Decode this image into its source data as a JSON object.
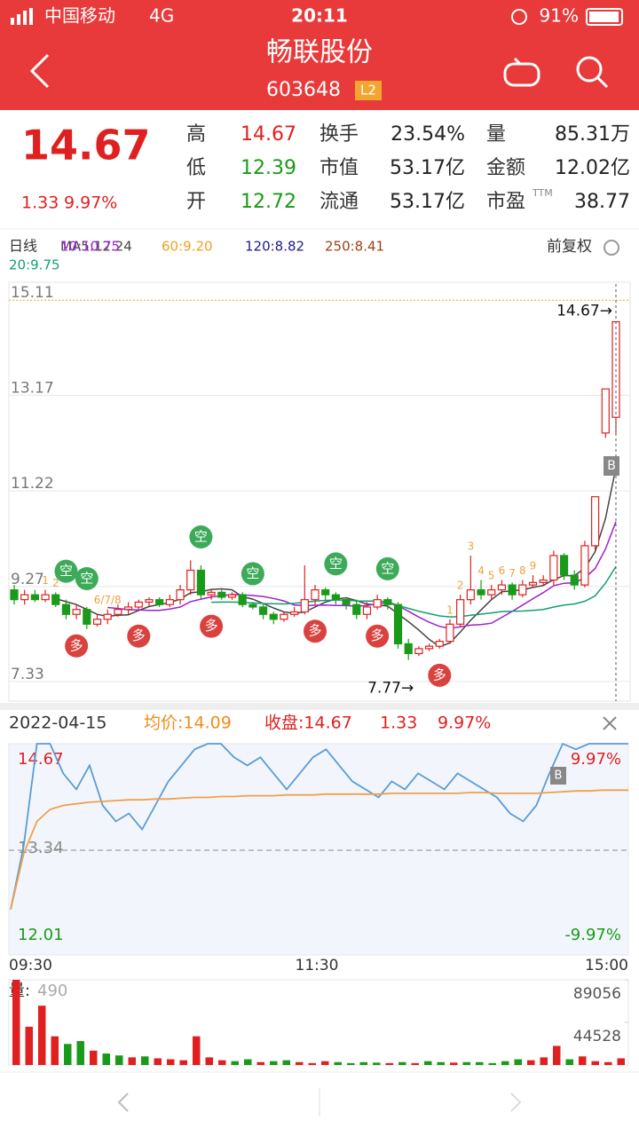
{
  "status": {
    "carrier": "中国移动",
    "network": "4G",
    "time": "20:11",
    "battery": "91%"
  },
  "header": {
    "title": "畅联股份",
    "code": "603648",
    "badge": "L2"
  },
  "quote": {
    "price": "14.67",
    "change": "1.33",
    "pct": "9.97%",
    "ttm": "TTM",
    "stats": [
      {
        "label": "高",
        "value": "14.67"
      },
      {
        "label": "低",
        "value": "12.39"
      },
      {
        "label": "开",
        "value": "12.72"
      },
      {
        "label": "换手",
        "value": "23.54%"
      },
      {
        "label": "市值",
        "value": "53.17亿"
      },
      {
        "label": "流通",
        "value": "53.17亿"
      },
      {
        "label": "量",
        "value": "85.31万"
      },
      {
        "label": "金额",
        "value": "12.02亿"
      },
      {
        "label": "市盈",
        "value": "38.77"
      }
    ]
  },
  "chart_data": [
    {
      "type": "candlestick",
      "period": "日线",
      "adjust": "前复权",
      "ma_labels": [
        "MA5:12.24",
        "10:10.75",
        "60:9.20",
        "120:8.82",
        "250:8.41",
        "20:9.75"
      ],
      "ylim": [
        6.93,
        15.44
      ],
      "yticks": [
        {
          "value": 15.11,
          "label": "15.11"
        },
        {
          "value": 13.17,
          "label": "13.17"
        },
        {
          "value": 11.22,
          "label": "11.22"
        },
        {
          "value": 9.27,
          "label": "9.27"
        },
        {
          "value": 7.33,
          "label": "7.33"
        }
      ],
      "max_label": "14.67→",
      "min_label": "7.77→",
      "buy_marker": "B",
      "open": [
        9.2,
        9.0,
        9.1,
        9.0,
        9.1,
        8.9,
        8.7,
        8.8,
        8.5,
        8.6,
        8.7,
        8.8,
        8.85,
        8.95,
        9.0,
        8.9,
        9.0,
        9.2,
        9.6,
        9.1,
        9.15,
        9.05,
        9.1,
        8.9,
        8.85,
        8.7,
        8.6,
        8.7,
        8.75,
        9.0,
        9.2,
        9.1,
        9.0,
        8.9,
        8.7,
        8.85,
        9.0,
        8.9,
        8.1,
        7.9,
        8.0,
        8.05,
        8.15,
        8.5,
        9.0,
        9.2,
        9.1,
        9.2,
        9.3,
        9.1,
        9.3,
        9.35,
        9.4,
        9.9,
        9.5,
        9.3,
        10.1,
        12.4,
        12.72
      ],
      "close": [
        9.0,
        9.1,
        9.0,
        9.1,
        8.9,
        8.7,
        8.8,
        8.5,
        8.6,
        8.7,
        8.8,
        8.85,
        8.95,
        9.0,
        8.9,
        9.0,
        9.2,
        9.6,
        9.1,
        9.15,
        9.05,
        9.1,
        8.9,
        8.85,
        8.7,
        8.6,
        8.7,
        8.75,
        9.0,
        9.2,
        9.1,
        9.0,
        8.9,
        8.7,
        8.85,
        9.0,
        8.9,
        8.1,
        7.9,
        8.0,
        8.05,
        8.15,
        8.5,
        9.0,
        9.2,
        9.1,
        9.2,
        9.3,
        9.1,
        9.3,
        9.35,
        9.4,
        9.9,
        9.5,
        9.3,
        10.1,
        11.1,
        13.3,
        14.67
      ],
      "high": [
        9.3,
        9.2,
        9.2,
        9.2,
        9.15,
        9.0,
        8.9,
        8.85,
        8.7,
        8.8,
        8.9,
        8.95,
        9.0,
        9.05,
        9.05,
        9.1,
        9.3,
        9.8,
        9.7,
        9.2,
        9.2,
        9.15,
        9.15,
        8.95,
        8.9,
        8.75,
        8.75,
        8.85,
        9.7,
        9.3,
        9.25,
        9.15,
        9.05,
        9.0,
        8.95,
        9.1,
        9.05,
        8.95,
        8.2,
        8.05,
        8.1,
        8.2,
        8.6,
        9.1,
        9.9,
        9.4,
        9.3,
        9.4,
        9.35,
        9.4,
        9.5,
        9.5,
        10.0,
        9.95,
        9.6,
        10.2,
        11.1,
        13.3,
        14.67
      ],
      "low": [
        8.9,
        8.9,
        8.95,
        8.95,
        8.85,
        8.6,
        8.6,
        8.4,
        8.45,
        8.5,
        8.65,
        8.7,
        8.8,
        8.85,
        8.85,
        8.85,
        8.9,
        9.1,
        9.0,
        9.0,
        9.0,
        9.0,
        8.85,
        8.8,
        8.6,
        8.5,
        8.55,
        8.65,
        8.7,
        8.9,
        9.0,
        8.9,
        8.8,
        8.6,
        8.6,
        8.8,
        8.8,
        8.0,
        7.77,
        7.85,
        7.95,
        8.0,
        8.1,
        8.45,
        8.9,
        9.0,
        9.0,
        9.1,
        9.0,
        9.05,
        9.25,
        9.3,
        9.3,
        9.4,
        9.2,
        9.25,
        10.0,
        12.3,
        12.39
      ],
      "signals": [
        {
          "label": "空",
          "index": 5
        },
        {
          "label": "空",
          "index": 7
        },
        {
          "label": "空",
          "index": 18
        },
        {
          "label": "空",
          "index": 23
        },
        {
          "label": "空",
          "index": 31
        },
        {
          "label": "空",
          "index": 36
        },
        {
          "label": "多",
          "index": 6
        },
        {
          "label": "多",
          "index": 12
        },
        {
          "label": "多",
          "index": 19
        },
        {
          "label": "多",
          "index": 29
        },
        {
          "label": "多",
          "index": 35
        },
        {
          "label": "多",
          "index": 41
        }
      ],
      "td_marks": [
        {
          "label": "1",
          "index": 3
        },
        {
          "label": "2",
          "index": 4
        },
        {
          "label": "6/7/8",
          "index": 9
        },
        {
          "label": "1",
          "index": 42
        },
        {
          "label": "2",
          "index": 43
        },
        {
          "label": "3",
          "index": 44
        },
        {
          "label": "4",
          "index": 45
        },
        {
          "label": "5",
          "index": 46
        },
        {
          "label": "6",
          "index": 47
        },
        {
          "label": "7",
          "index": 48
        },
        {
          "label": "8",
          "index": 49
        },
        {
          "label": "9",
          "index": 50
        }
      ]
    },
    {
      "type": "line",
      "date": "2022-04-15",
      "avg_label": "均价:14.09",
      "close_label": "收盘:14.67",
      "change": "1.33",
      "pct": "9.97%",
      "ylim": [
        12.01,
        14.67
      ],
      "yticks": [
        {
          "value": 14.67,
          "label": "14.67"
        },
        {
          "value": 13.34,
          "label": "13.34"
        },
        {
          "value": 12.01,
          "label": "12.01"
        }
      ],
      "right_labels": [
        "9.97%",
        "-9.97%"
      ],
      "xtick_labels": [
        "09:30",
        "11:30",
        "15:00"
      ],
      "buy_marker": "B",
      "series": [
        {
          "name": "price",
          "color": "#5b9bd5",
          "values": [
            12.6,
            13.4,
            14.67,
            14.67,
            14.3,
            14.1,
            14.4,
            13.9,
            13.7,
            13.8,
            13.6,
            13.9,
            14.2,
            14.4,
            14.6,
            14.67,
            14.67,
            14.5,
            14.4,
            14.5,
            14.3,
            14.1,
            14.3,
            14.5,
            14.6,
            14.4,
            14.2,
            14.1,
            14.0,
            14.2,
            14.1,
            14.3,
            14.2,
            14.1,
            14.3,
            14.2,
            14.1,
            14.0,
            13.8,
            13.7,
            13.9,
            14.3,
            14.67,
            14.6,
            14.67,
            14.67,
            14.67,
            14.67
          ]
        },
        {
          "name": "avg",
          "color": "#f0a04b",
          "values": [
            12.6,
            13.3,
            13.7,
            13.85,
            13.9,
            13.92,
            13.94,
            13.95,
            13.96,
            13.97,
            13.97,
            13.98,
            13.98,
            13.99,
            14.0,
            14.0,
            14.01,
            14.01,
            14.02,
            14.02,
            14.02,
            14.03,
            14.03,
            14.03,
            14.04,
            14.04,
            14.04,
            14.04,
            14.04,
            14.05,
            14.05,
            14.05,
            14.05,
            14.05,
            14.05,
            14.06,
            14.06,
            14.05,
            14.05,
            14.05,
            14.05,
            14.06,
            14.07,
            14.08,
            14.08,
            14.09,
            14.09,
            14.09
          ]
        }
      ]
    },
    {
      "type": "bar",
      "label": "量:",
      "current": "490",
      "ylim": [
        0,
        89056
      ],
      "yticks": [
        89056,
        44528
      ],
      "values": [
        89056,
        40000,
        62000,
        30000,
        22000,
        25000,
        15000,
        12000,
        10000,
        8000,
        9000,
        7000,
        6000,
        5000,
        30000,
        8000,
        5000,
        4000,
        6000,
        3000,
        4000,
        5000,
        3000,
        2000,
        4000,
        3000,
        2000,
        3000,
        2500,
        2000,
        3000,
        2000,
        4000,
        3000,
        2500,
        3000,
        3000,
        2000,
        4000,
        6000,
        5000,
        8000,
        20000,
        6000,
        9000,
        4000,
        3000,
        7000
      ]
    }
  ]
}
